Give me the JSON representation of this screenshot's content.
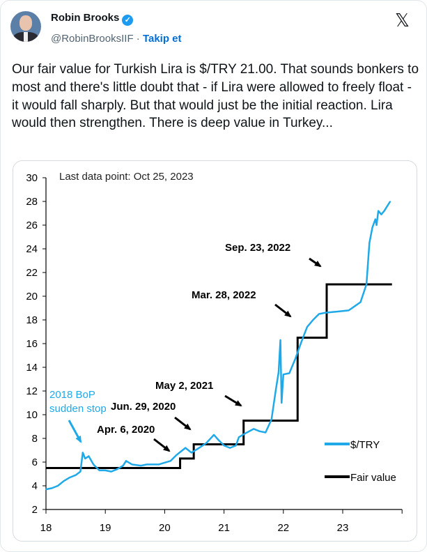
{
  "tweet": {
    "author_name": "Robin Brooks",
    "verified_icon": "verified-badge-icon",
    "handle": "@RobinBrooksIIF",
    "separator": "·",
    "follow_label": "Takip et",
    "platform_icon": "x-logo-icon",
    "text": "Our fair value for Turkish Lira is $/TRY 21.00. That sounds bonkers to most and there's little doubt that - if Lira were allowed to freely float - it would fall sharply. But that would just be the initial reaction. Lira would then strengthen. There is deep value in Turkey..."
  },
  "chart_data": {
    "type": "line",
    "note": "Last data point: Oct 25, 2023",
    "xlim": [
      18,
      24
    ],
    "ylim": [
      2,
      30
    ],
    "x_ticks": [
      "18",
      "19",
      "20",
      "21",
      "22",
      "23"
    ],
    "y_ticks": [
      "2",
      "4",
      "6",
      "8",
      "10",
      "12",
      "14",
      "16",
      "18",
      "20",
      "22",
      "24",
      "26",
      "28",
      "30"
    ],
    "grid": false,
    "legend_placement": "right",
    "colors": {
      "usdtry": "#1fa9e8",
      "fair_value": "#000000"
    },
    "series": [
      {
        "name": "$/TRY",
        "points": [
          [
            18.0,
            3.7
          ],
          [
            18.1,
            3.8
          ],
          [
            18.2,
            4.0
          ],
          [
            18.3,
            4.4
          ],
          [
            18.4,
            4.7
          ],
          [
            18.5,
            4.9
          ],
          [
            18.58,
            5.2
          ],
          [
            18.62,
            6.8
          ],
          [
            18.66,
            6.3
          ],
          [
            18.72,
            6.5
          ],
          [
            18.8,
            5.8
          ],
          [
            18.9,
            5.3
          ],
          [
            19.0,
            5.3
          ],
          [
            19.1,
            5.2
          ],
          [
            19.2,
            5.4
          ],
          [
            19.3,
            5.7
          ],
          [
            19.35,
            6.1
          ],
          [
            19.45,
            5.8
          ],
          [
            19.6,
            5.7
          ],
          [
            19.7,
            5.8
          ],
          [
            19.8,
            5.8
          ],
          [
            19.9,
            5.8
          ],
          [
            20.0,
            5.95
          ],
          [
            20.1,
            6.1
          ],
          [
            20.2,
            6.6
          ],
          [
            20.35,
            7.2
          ],
          [
            20.45,
            6.8
          ],
          [
            20.55,
            7.1
          ],
          [
            20.7,
            7.6
          ],
          [
            20.83,
            8.3
          ],
          [
            20.9,
            7.9
          ],
          [
            21.0,
            7.4
          ],
          [
            21.1,
            7.2
          ],
          [
            21.2,
            7.4
          ],
          [
            21.25,
            8.1
          ],
          [
            21.35,
            8.4
          ],
          [
            21.5,
            8.8
          ],
          [
            21.6,
            8.6
          ],
          [
            21.7,
            8.5
          ],
          [
            21.8,
            9.6
          ],
          [
            21.87,
            12.0
          ],
          [
            21.92,
            13.6
          ],
          [
            21.95,
            16.3
          ],
          [
            21.97,
            11.0
          ],
          [
            22.0,
            13.4
          ],
          [
            22.1,
            13.5
          ],
          [
            22.2,
            14.7
          ],
          [
            22.3,
            16.1
          ],
          [
            22.4,
            17.4
          ],
          [
            22.5,
            18.0
          ],
          [
            22.6,
            18.5
          ],
          [
            22.7,
            18.6
          ],
          [
            22.9,
            18.7
          ],
          [
            23.1,
            18.8
          ],
          [
            23.3,
            19.5
          ],
          [
            23.4,
            21.0
          ],
          [
            23.45,
            24.5
          ],
          [
            23.5,
            25.8
          ],
          [
            23.55,
            26.5
          ],
          [
            23.57,
            26.0
          ],
          [
            23.6,
            27.2
          ],
          [
            23.65,
            26.9
          ],
          [
            23.7,
            27.2
          ],
          [
            23.8,
            28.0
          ]
        ]
      },
      {
        "name": "Fair value",
        "steps": [
          [
            18.0,
            5.5
          ],
          [
            20.26,
            6.3
          ],
          [
            20.49,
            7.5
          ],
          [
            21.33,
            9.5
          ],
          [
            22.24,
            16.5
          ],
          [
            22.73,
            21.0
          ],
          [
            23.83,
            21.0
          ]
        ]
      }
    ],
    "annotations": [
      {
        "text": "Sep. 23, 2022",
        "color": "#000000"
      },
      {
        "text": "Mar. 28, 2022",
        "color": "#000000"
      },
      {
        "text": "May 2, 2021",
        "color": "#000000"
      },
      {
        "text": "Jun. 29, 2020",
        "color": "#000000"
      },
      {
        "text": "Apr. 6, 2020",
        "color": "#000000"
      },
      {
        "text_line1": "2018 BoP",
        "text_line2": "sudden stop",
        "color": "#1fa9e8"
      }
    ]
  }
}
